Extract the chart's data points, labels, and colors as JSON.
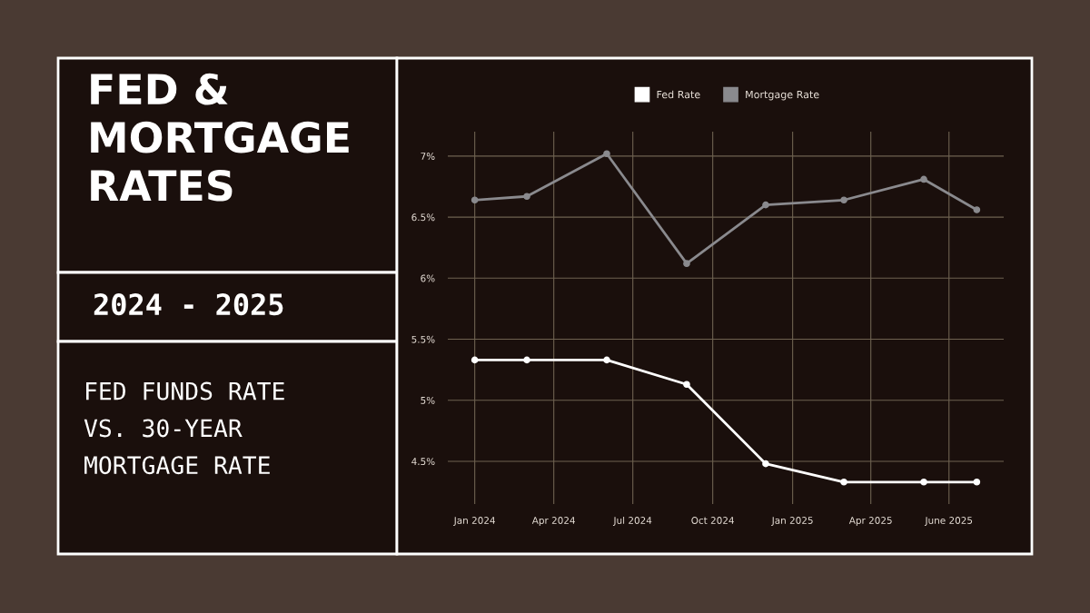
{
  "chart_data": {
    "type": "line",
    "title": "FED &\nMORTGAGE\nRATES",
    "subtitle": "2024 - 2025",
    "annotations": [
      "FED FUNDS RATE\nVS. 30-YEAR\nMORTGAGE RATE"
    ],
    "x": [
      "2024-01-01",
      "2024-03-01",
      "2024-06-01",
      "2024-09-01",
      "2024-12-01",
      "2025-03-01",
      "2025-06-01",
      "2025-08-01"
    ],
    "series": [
      {
        "name": "Fed Rate",
        "color": "#ffffff",
        "values": [
          5.33,
          5.33,
          5.33,
          5.13,
          4.48,
          4.33,
          4.33,
          4.33
        ]
      },
      {
        "name": "Mortgage Rate",
        "color": "#8a8a8e",
        "values": [
          6.64,
          6.67,
          7.02,
          6.12,
          6.6,
          6.64,
          6.81,
          6.56
        ]
      }
    ],
    "xlim": [
      "2023-12-01",
      "2025-09-01"
    ],
    "xticks": [
      {
        "value": "2024-01-01",
        "label": "Jan 2024"
      },
      {
        "value": "2024-04-01",
        "label": "Apr 2024"
      },
      {
        "value": "2024-07-01",
        "label": "Jul 2024"
      },
      {
        "value": "2024-10-01",
        "label": "Oct 2024"
      },
      {
        "value": "2025-01-01",
        "label": "Jan 2025"
      },
      {
        "value": "2025-04-01",
        "label": "Apr 2025"
      },
      {
        "value": "2025-06-30",
        "label": "June 2025"
      }
    ],
    "ylim": [
      4.15,
      7.2
    ],
    "yticks": [
      {
        "value": 4.5,
        "label": "4.5%"
      },
      {
        "value": 5,
        "label": "5%"
      },
      {
        "value": 5.5,
        "label": "5.5%"
      },
      {
        "value": 6,
        "label": "6%"
      },
      {
        "value": 6.5,
        "label": "6.5%"
      },
      {
        "value": 7,
        "label": "7%"
      }
    ],
    "grid": true,
    "legend": "top",
    "marker": "circle",
    "line_style": "solid"
  }
}
